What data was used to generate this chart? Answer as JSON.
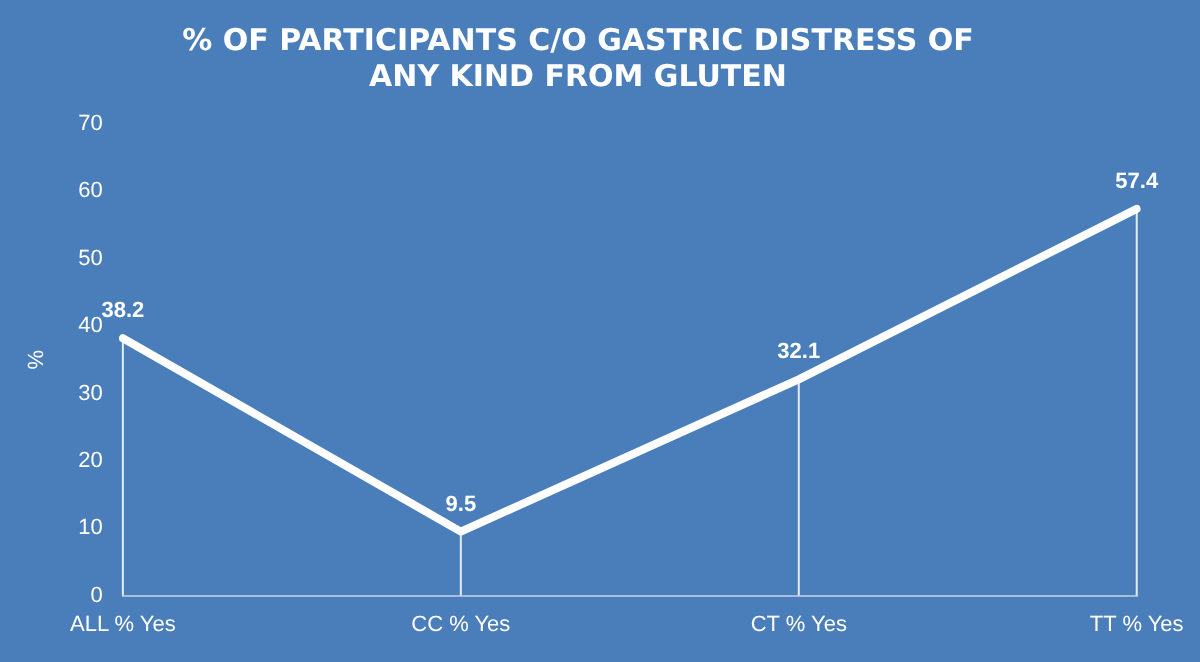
{
  "chart_data": {
    "type": "line",
    "title": "% OF PARTICIPANTS C/O GASTRIC DISTRESS OF ANY KIND FROM GLUTEN",
    "ylabel": "%",
    "categories": [
      "ALL % Yes",
      "CC % Yes",
      "CT % Yes",
      "TT % Yes"
    ],
    "series": [
      {
        "color": "#ffffff",
        "values": [
          38.2,
          9.5,
          32.1,
          57.4
        ]
      }
    ],
    "ylim": [
      0,
      70
    ],
    "yticks": [
      0,
      10,
      20,
      30,
      40,
      50,
      60,
      70
    ],
    "grid": false,
    "legend": false,
    "marker": "none",
    "line_style": "solid",
    "data_labels": true
  }
}
